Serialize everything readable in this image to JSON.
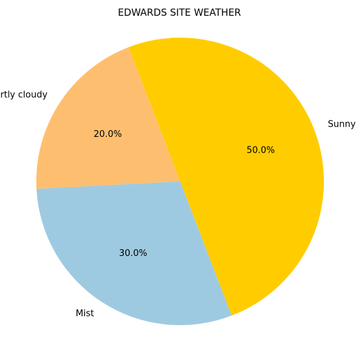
{
  "chart_data": {
    "type": "pie",
    "title": "EDWARDS SITE WEATHER",
    "slices": [
      {
        "label": "Sunny",
        "value": 50.0,
        "pct_label": "50.0%",
        "color": "#ffcc00"
      },
      {
        "label": "Partly cloudy",
        "value": 20.0,
        "pct_label": "20.0%",
        "color": "#fdbf6f"
      },
      {
        "label": "Mist",
        "value": 30.0,
        "pct_label": "30.0%",
        "color": "#9ecae1"
      }
    ],
    "start_angle_deg": -69,
    "direction": "counterclockwise",
    "legend": "none"
  }
}
